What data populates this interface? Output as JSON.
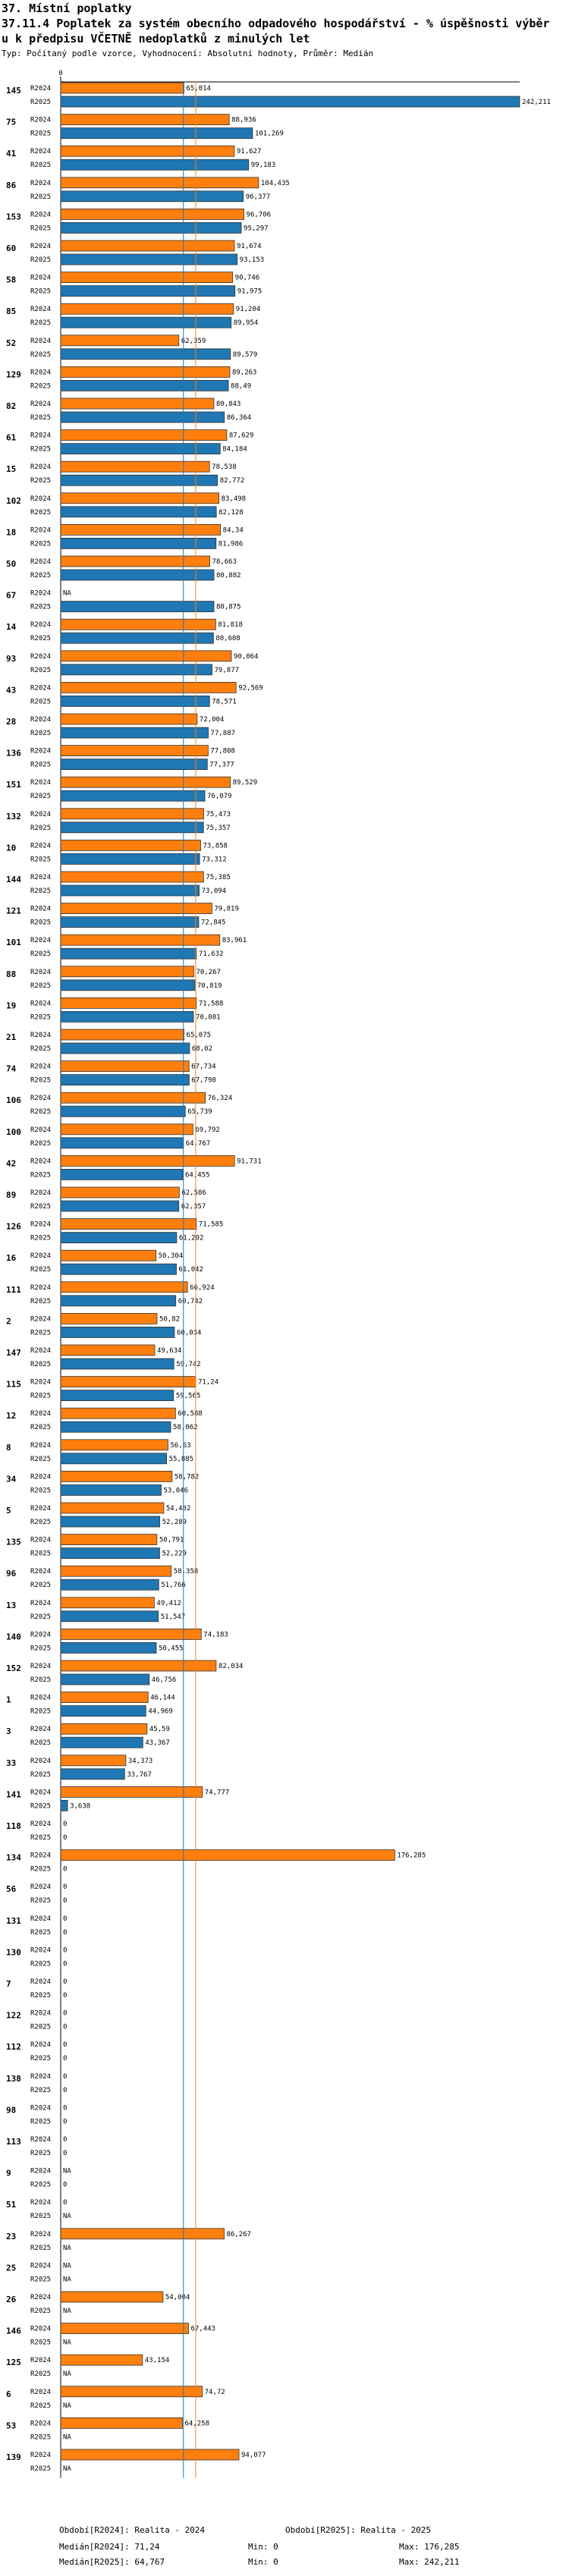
{
  "header": {
    "title1": "37. Místní poplatky",
    "title2": "37.11.4 Poplatek za systém obecního odpadového hospodářství  - % úspěšnosti výběr",
    "title3": "u k předpisu VČETNĚ nedoplatků z minulých let",
    "subtitle": "Typ: Počítaný podle vzorce, Vyhodnocení: Absolutní hodnoty, Průměr: Medián"
  },
  "chart_data": {
    "type": "bar",
    "orientation": "horizontal",
    "xlim": [
      0,
      242.211
    ],
    "axis_tick_label": "0",
    "na_label": "NA",
    "series_names": [
      "R2024",
      "R2025"
    ],
    "colors": {
      "R2024": "#ff7f0e",
      "R2025": "#1f77b4",
      "median2024": "#ff7f0e",
      "median2025": "#1f77b4"
    },
    "medians": {
      "R2024": 71.24,
      "R2025": 64.767
    },
    "groups": [
      {
        "id": "145",
        "r2024": 65.014,
        "r2025": 242.211,
        "l2024": "65,014",
        "l2025": "242,211"
      },
      {
        "id": "75",
        "r2024": 88.936,
        "r2025": 101.269,
        "l2024": "88,936",
        "l2025": "101,269"
      },
      {
        "id": "41",
        "r2024": 91.627,
        "r2025": 99.183,
        "l2024": "91,627",
        "l2025": "99,183"
      },
      {
        "id": "86",
        "r2024": 104.435,
        "r2025": 96.377,
        "l2024": "104,435",
        "l2025": "96,377"
      },
      {
        "id": "153",
        "r2024": 96.706,
        "r2025": 95.297,
        "l2024": "96,706",
        "l2025": "95,297"
      },
      {
        "id": "60",
        "r2024": 91.674,
        "r2025": 93.153,
        "l2024": "91,674",
        "l2025": "93,153"
      },
      {
        "id": "58",
        "r2024": 90.746,
        "r2025": 91.975,
        "l2024": "90,746",
        "l2025": "91,975"
      },
      {
        "id": "85",
        "r2024": 91.204,
        "r2025": 89.954,
        "l2024": "91,204",
        "l2025": "89,954"
      },
      {
        "id": "52",
        "r2024": 62.359,
        "r2025": 89.579,
        "l2024": "62,359",
        "l2025": "89,579"
      },
      {
        "id": "129",
        "r2024": 89.263,
        "r2025": 88.49,
        "l2024": "89,263",
        "l2025": "88,49"
      },
      {
        "id": "82",
        "r2024": 80.843,
        "r2025": 86.364,
        "l2024": "80,843",
        "l2025": "86,364"
      },
      {
        "id": "61",
        "r2024": 87.629,
        "r2025": 84.184,
        "l2024": "87,629",
        "l2025": "84,184"
      },
      {
        "id": "15",
        "r2024": 78.538,
        "r2025": 82.772,
        "l2024": "78,538",
        "l2025": "82,772"
      },
      {
        "id": "102",
        "r2024": 83.498,
        "r2025": 82.128,
        "l2024": "83,498",
        "l2025": "82,128"
      },
      {
        "id": "18",
        "r2024": 84.34,
        "r2025": 81.986,
        "l2024": "84,34",
        "l2025": "81,986"
      },
      {
        "id": "50",
        "r2024": 78.663,
        "r2025": 80.882,
        "l2024": "78,663",
        "l2025": "80,882"
      },
      {
        "id": "67",
        "r2024": null,
        "r2025": 80.875,
        "l2024": "NA",
        "l2025": "80,875"
      },
      {
        "id": "14",
        "r2024": 81.818,
        "r2025": 80.608,
        "l2024": "81,818",
        "l2025": "80,608"
      },
      {
        "id": "93",
        "r2024": 90.064,
        "r2025": 79.877,
        "l2024": "90,064",
        "l2025": "79,877"
      },
      {
        "id": "43",
        "r2024": 92.569,
        "r2025": 78.571,
        "l2024": "92,569",
        "l2025": "78,571"
      },
      {
        "id": "28",
        "r2024": 72.004,
        "r2025": 77.887,
        "l2024": "72,004",
        "l2025": "77,887"
      },
      {
        "id": "136",
        "r2024": 77.808,
        "r2025": 77.377,
        "l2024": "77,808",
        "l2025": "77,377"
      },
      {
        "id": "151",
        "r2024": 89.529,
        "r2025": 76.079,
        "l2024": "89,529",
        "l2025": "76,079"
      },
      {
        "id": "132",
        "r2024": 75.473,
        "r2025": 75.357,
        "l2024": "75,473",
        "l2025": "75,357"
      },
      {
        "id": "10",
        "r2024": 73.858,
        "r2025": 73.312,
        "l2024": "73,858",
        "l2025": "73,312"
      },
      {
        "id": "144",
        "r2024": 75.385,
        "r2025": 73.094,
        "l2024": "75,385",
        "l2025": "73,094"
      },
      {
        "id": "121",
        "r2024": 79.819,
        "r2025": 72.845,
        "l2024": "79,819",
        "l2025": "72,845"
      },
      {
        "id": "101",
        "r2024": 83.961,
        "r2025": 71.632,
        "l2024": "83,961",
        "l2025": "71,632"
      },
      {
        "id": "88",
        "r2024": 70.267,
        "r2025": 70.819,
        "l2024": "70,267",
        "l2025": "70,819"
      },
      {
        "id": "19",
        "r2024": 71.588,
        "r2025": 70.081,
        "l2024": "71,588",
        "l2025": "70,081"
      },
      {
        "id": "21",
        "r2024": 65.075,
        "r2025": 68.02,
        "l2024": "65,075",
        "l2025": "68,02"
      },
      {
        "id": "74",
        "r2024": 67.734,
        "r2025": 67.798,
        "l2024": "67,734",
        "l2025": "67,798"
      },
      {
        "id": "106",
        "r2024": 76.324,
        "r2025": 65.739,
        "l2024": "76,324",
        "l2025": "65,739"
      },
      {
        "id": "100",
        "r2024": 69.792,
        "r2025": 64.767,
        "l2024": "69,792",
        "l2025": "64,767"
      },
      {
        "id": "42",
        "r2024": 91.731,
        "r2025": 64.455,
        "l2024": "91,731",
        "l2025": "64,455"
      },
      {
        "id": "89",
        "r2024": 62.586,
        "r2025": 62.357,
        "l2024": "62,586",
        "l2025": "62,357"
      },
      {
        "id": "126",
        "r2024": 71.585,
        "r2025": 61.202,
        "l2024": "71,585",
        "l2025": "61,202"
      },
      {
        "id": "16",
        "r2024": 50.304,
        "r2025": 61.042,
        "l2024": "50,304",
        "l2025": "61,042"
      },
      {
        "id": "111",
        "r2024": 66.924,
        "r2025": 60.742,
        "l2024": "66,924",
        "l2025": "60,742"
      },
      {
        "id": "2",
        "r2024": 50.82,
        "r2025": 60.034,
        "l2024": "50,82",
        "l2025": "60,034"
      },
      {
        "id": "147",
        "r2024": 49.634,
        "r2025": 59.742,
        "l2024": "49,634",
        "l2025": "59,742"
      },
      {
        "id": "115",
        "r2024": 71.24,
        "r2025": 59.565,
        "l2024": "71,24",
        "l2025": "59,565"
      },
      {
        "id": "12",
        "r2024": 60.588,
        "r2025": 58.062,
        "l2024": "60,588",
        "l2025": "58,062"
      },
      {
        "id": "8",
        "r2024": 56.63,
        "r2025": 55.885,
        "l2024": "56,63",
        "l2025": "55,885"
      },
      {
        "id": "34",
        "r2024": 58.782,
        "r2025": 53.046,
        "l2024": "58,782",
        "l2025": "53,046"
      },
      {
        "id": "5",
        "r2024": 54.402,
        "r2025": 52.289,
        "l2024": "54,402",
        "l2025": "52,289"
      },
      {
        "id": "135",
        "r2024": 50.791,
        "r2025": 52.229,
        "l2024": "50,791",
        "l2025": "52,229"
      },
      {
        "id": "96",
        "r2024": 58.358,
        "r2025": 51.766,
        "l2024": "58,358",
        "l2025": "51,766"
      },
      {
        "id": "13",
        "r2024": 49.412,
        "r2025": 51.547,
        "l2024": "49,412",
        "l2025": "51,547"
      },
      {
        "id": "140",
        "r2024": 74.183,
        "r2025": 50.455,
        "l2024": "74,183",
        "l2025": "50,455"
      },
      {
        "id": "152",
        "r2024": 82.034,
        "r2025": 46.756,
        "l2024": "82,034",
        "l2025": "46,756"
      },
      {
        "id": "1",
        "r2024": 46.144,
        "r2025": 44.969,
        "l2024": "46,144",
        "l2025": "44,969"
      },
      {
        "id": "3",
        "r2024": 45.59,
        "r2025": 43.367,
        "l2024": "45,59",
        "l2025": "43,367"
      },
      {
        "id": "33",
        "r2024": 34.373,
        "r2025": 33.767,
        "l2024": "34,373",
        "l2025": "33,767"
      },
      {
        "id": "141",
        "r2024": 74.777,
        "r2025": 3.638,
        "l2024": "74,777",
        "l2025": "3,638"
      },
      {
        "id": "118",
        "r2024": 0,
        "r2025": 0,
        "l2024": "0",
        "l2025": "0"
      },
      {
        "id": "134",
        "r2024": 176.285,
        "r2025": 0,
        "l2024": "176,285",
        "l2025": "0"
      },
      {
        "id": "56",
        "r2024": 0,
        "r2025": 0,
        "l2024": "0",
        "l2025": "0"
      },
      {
        "id": "131",
        "r2024": 0,
        "r2025": 0,
        "l2024": "0",
        "l2025": "0"
      },
      {
        "id": "130",
        "r2024": 0,
        "r2025": 0,
        "l2024": "0",
        "l2025": "0"
      },
      {
        "id": "7",
        "r2024": 0,
        "r2025": 0,
        "l2024": "0",
        "l2025": "0"
      },
      {
        "id": "122",
        "r2024": 0,
        "r2025": 0,
        "l2024": "0",
        "l2025": "0"
      },
      {
        "id": "112",
        "r2024": 0,
        "r2025": 0,
        "l2024": "0",
        "l2025": "0"
      },
      {
        "id": "138",
        "r2024": 0,
        "r2025": 0,
        "l2024": "0",
        "l2025": "0"
      },
      {
        "id": "98",
        "r2024": 0,
        "r2025": 0,
        "l2024": "0",
        "l2025": "0"
      },
      {
        "id": "113",
        "r2024": 0,
        "r2025": 0,
        "l2024": "0",
        "l2025": "0"
      },
      {
        "id": "9",
        "r2024": null,
        "r2025": 0,
        "l2024": "NA",
        "l2025": "0"
      },
      {
        "id": "51",
        "r2024": 0,
        "r2025": null,
        "l2024": "0",
        "l2025": "NA"
      },
      {
        "id": "23",
        "r2024": 86.267,
        "r2025": null,
        "l2024": "86,267",
        "l2025": "NA"
      },
      {
        "id": "25",
        "r2024": null,
        "r2025": null,
        "l2024": "NA",
        "l2025": "NA"
      },
      {
        "id": "26",
        "r2024": 54.004,
        "r2025": null,
        "l2024": "54,004",
        "l2025": "NA"
      },
      {
        "id": "146",
        "r2024": 67.443,
        "r2025": null,
        "l2024": "67,443",
        "l2025": "NA"
      },
      {
        "id": "125",
        "r2024": 43.154,
        "r2025": null,
        "l2024": "43,154",
        "l2025": "NA"
      },
      {
        "id": "6",
        "r2024": 74.72,
        "r2025": null,
        "l2024": "74,72",
        "l2025": "NA"
      },
      {
        "id": "53",
        "r2024": 64.258,
        "r2025": null,
        "l2024": "64,258",
        "l2025": "NA"
      },
      {
        "id": "139",
        "r2024": 94.077,
        "r2025": null,
        "l2024": "94,077",
        "l2025": "NA"
      }
    ]
  },
  "footer": {
    "period1": "Období[R2024]: Realita - 2024",
    "period2": "Období[R2025]: Realita - 2025",
    "median1": "Medián[R2024]: 71,24",
    "median2": "Medián[R2025]: 64,767",
    "min1": "Min: 0",
    "min2": "Min: 0",
    "max1": "Max: 176,285",
    "max2": "Max: 242,211"
  }
}
